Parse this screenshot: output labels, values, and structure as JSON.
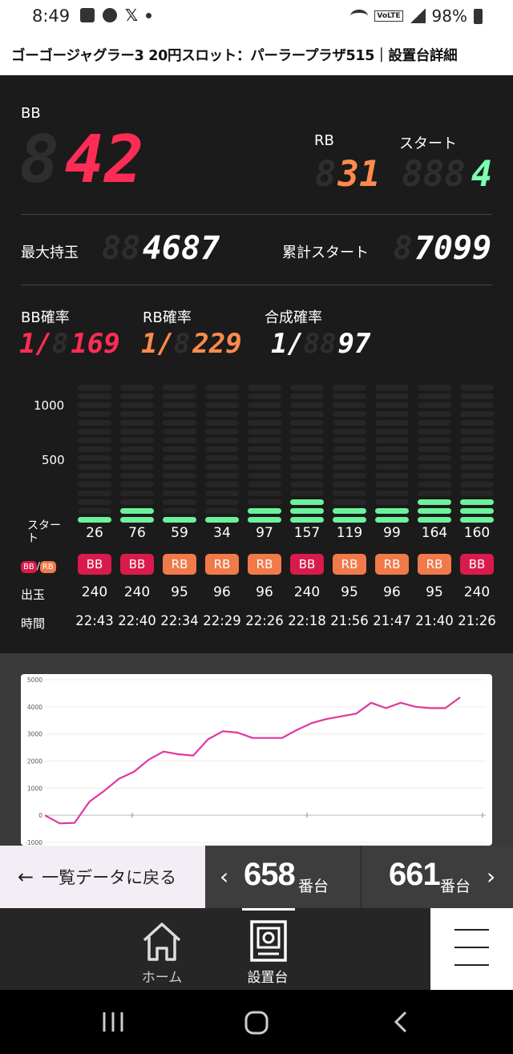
{
  "status_bar": {
    "time": "8:49",
    "battery": "98%",
    "network": "VoLTE"
  },
  "page_title": "ゴーゴージャグラー3 20円スロット：パーラープラザ515｜設置台詳細",
  "counters": {
    "bb_label": "BB",
    "bb_value": "42",
    "rb_label": "RB",
    "rb_value": "31",
    "start_label": "スタート",
    "start_value": "4"
  },
  "stats": {
    "max_label": "最大持玉",
    "max_value": "4687",
    "total_start_label": "累計スタート",
    "total_start_value": "7099"
  },
  "probabilities": {
    "bb_label": "BB確率",
    "bb_value": "169",
    "rb_label": "RB確率",
    "rb_value": "229",
    "combined_label": "合成確率",
    "combined_value": "97",
    "prefix": "1/"
  },
  "history": {
    "axis_ticks": [
      "1000",
      "500"
    ],
    "row_labels": {
      "start": "スタート",
      "bb": "BB",
      "rb": "RB",
      "out": "出玉",
      "time": "時間"
    },
    "starts": [
      "26",
      "76",
      "59",
      "34",
      "97",
      "157",
      "119",
      "99",
      "164",
      "160"
    ],
    "types": [
      "BB",
      "BB",
      "RB",
      "RB",
      "RB",
      "BB",
      "RB",
      "RB",
      "RB",
      "BB"
    ],
    "payouts": [
      "240",
      "240",
      "95",
      "96",
      "96",
      "240",
      "95",
      "96",
      "95",
      "240"
    ],
    "times": [
      "22:43",
      "22:40",
      "22:34",
      "22:29",
      "22:26",
      "22:18",
      "21:56",
      "21:47",
      "21:40",
      "21:26"
    ]
  },
  "graph": {
    "y_ticks": [
      "5000",
      "4000",
      "3000",
      "2000",
      "1000",
      "0",
      "-1000"
    ],
    "line_color": "#e0379e",
    "points": [
      0,
      -300,
      -280,
      500,
      900,
      1350,
      1600,
      2050,
      2350,
      2250,
      2200,
      2800,
      3100,
      3050,
      2850,
      2850,
      2850,
      3150,
      3400,
      3550,
      3650,
      3750,
      4150,
      3950,
      4150,
      4000,
      3950,
      3950,
      4350
    ]
  },
  "navigation": {
    "back_label": "一覧データに戻る",
    "prev_number": "658",
    "next_number": "661",
    "unit": "番台"
  },
  "appnav": {
    "home_label": "ホーム",
    "machine_label": "設置台"
  },
  "colors": {
    "bb": "#d81b4c",
    "rb": "#f07a4a",
    "bar_on": "#6cf29a"
  }
}
